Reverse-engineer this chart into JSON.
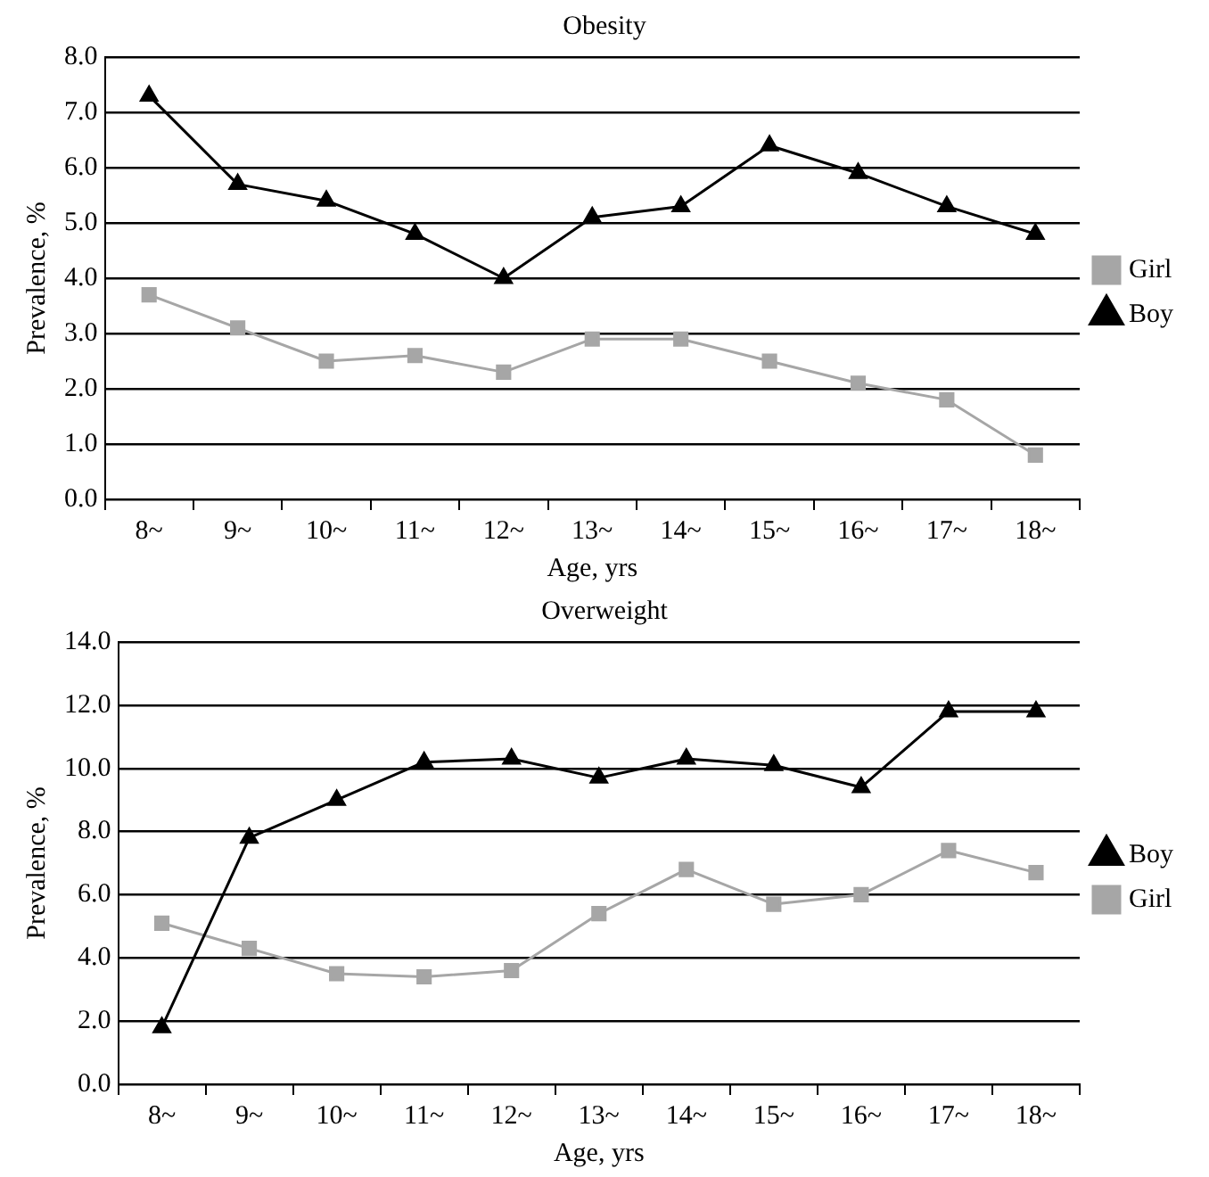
{
  "chart_data": [
    {
      "type": "line",
      "title": "Obesity",
      "xlabel": "Age, yrs",
      "ylabel": "Prevalence, %",
      "categories": [
        "8~",
        "9~",
        "10~",
        "11~",
        "12~",
        "13~",
        "14~",
        "15~",
        "16~",
        "17~",
        "18~"
      ],
      "series": [
        {
          "name": "Girl",
          "color": "#a6a6a6",
          "marker": "square",
          "values": [
            3.7,
            3.1,
            2.5,
            2.6,
            2.3,
            2.9,
            2.9,
            2.5,
            2.1,
            1.8,
            0.8
          ]
        },
        {
          "name": "Boy",
          "color": "#000000",
          "marker": "triangle",
          "values": [
            7.3,
            5.7,
            5.4,
            4.8,
            4.0,
            5.1,
            5.3,
            6.4,
            5.9,
            5.3,
            4.8
          ]
        }
      ],
      "ylim": [
        0,
        8
      ],
      "yticks": [
        {
          "value": 0,
          "label": "0.0"
        },
        {
          "value": 1,
          "label": "1.0"
        },
        {
          "value": 2,
          "label": "2.0"
        },
        {
          "value": 3,
          "label": "3.0"
        },
        {
          "value": 4,
          "label": "4.0"
        },
        {
          "value": 5,
          "label": "5.0"
        },
        {
          "value": 6,
          "label": "6.0"
        },
        {
          "value": 7,
          "label": "7.0"
        },
        {
          "value": 8,
          "label": "8.0"
        }
      ],
      "grid": "y",
      "legend": "right",
      "line_style": "solid"
    },
    {
      "type": "line",
      "title": "Overweight",
      "xlabel": "Age, yrs",
      "ylabel": "Prevalence, %",
      "categories": [
        "8~",
        "9~",
        "10~",
        "11~",
        "12~",
        "13~",
        "14~",
        "15~",
        "16~",
        "17~",
        "18~"
      ],
      "series": [
        {
          "name": "Boy",
          "color": "#000000",
          "marker": "triangle",
          "values": [
            1.8,
            7.8,
            9.0,
            10.2,
            10.3,
            9.7,
            10.3,
            10.1,
            9.4,
            11.8,
            11.8
          ]
        },
        {
          "name": "Girl",
          "color": "#a6a6a6",
          "marker": "square",
          "values": [
            5.1,
            4.3,
            3.5,
            3.4,
            3.6,
            5.4,
            6.8,
            5.7,
            6.0,
            7.4,
            6.7
          ]
        }
      ],
      "ylim": [
        0,
        14
      ],
      "yticks": [
        {
          "value": 0,
          "label": "0.0"
        },
        {
          "value": 2,
          "label": "2.0"
        },
        {
          "value": 4,
          "label": "4.0"
        },
        {
          "value": 6,
          "label": "6.0"
        },
        {
          "value": 8,
          "label": "8.0"
        },
        {
          "value": 10,
          "label": "10.0"
        },
        {
          "value": 12,
          "label": "12.0"
        },
        {
          "value": 14,
          "label": "14.0"
        }
      ],
      "grid": "y",
      "legend": "right",
      "line_style": "solid"
    }
  ]
}
